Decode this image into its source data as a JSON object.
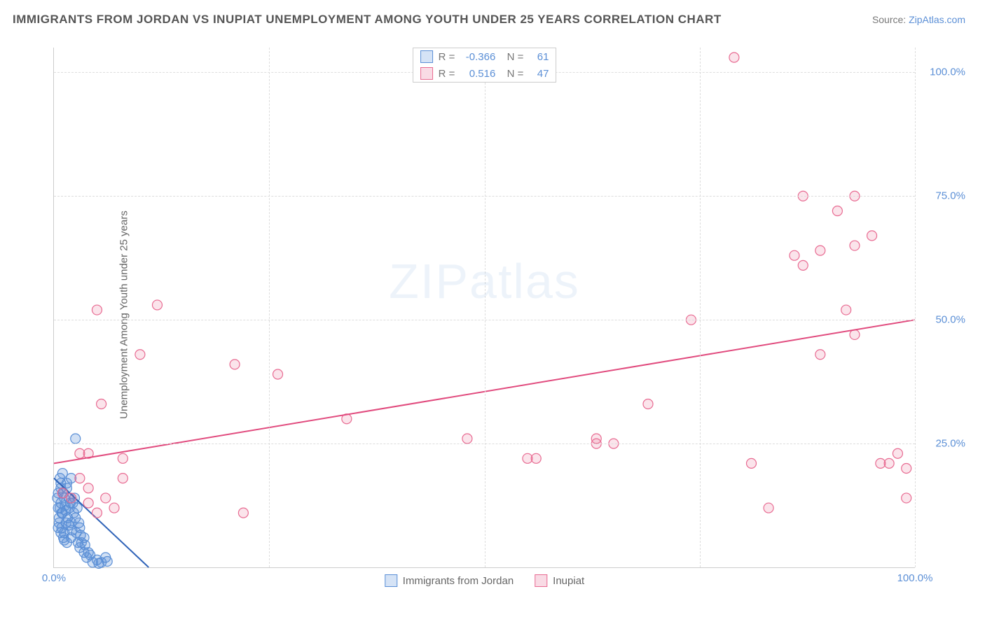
{
  "title": "IMMIGRANTS FROM JORDAN VS INUPIAT UNEMPLOYMENT AMONG YOUTH UNDER 25 YEARS CORRELATION CHART",
  "source_label": "Source:",
  "source_link": "ZipAtlas.com",
  "y_axis_label": "Unemployment Among Youth under 25 years",
  "watermark": {
    "t1": "ZIP",
    "t2": "atlas"
  },
  "chart": {
    "type": "scatter",
    "xlim": [
      0,
      100
    ],
    "ylim": [
      0,
      105
    ],
    "y_ticks": [
      {
        "v": 25,
        "label": "25.0%"
      },
      {
        "v": 50,
        "label": "50.0%"
      },
      {
        "v": 75,
        "label": "75.0%"
      },
      {
        "v": 100,
        "label": "100.0%"
      }
    ],
    "x_ticks": [
      {
        "v": 0,
        "label": "0.0%"
      },
      {
        "v": 100,
        "label": "100.0%"
      }
    ],
    "x_vgrid": [
      25,
      50,
      75,
      100
    ],
    "background_color": "#ffffff",
    "grid_color": "#dddddd",
    "axis_color": "#cccccc",
    "tick_label_color": "#5b8fd6",
    "marker_radius": 7,
    "marker_stroke_width": 1.2,
    "series": [
      {
        "name": "Immigrants from Jordan",
        "fill_color": "rgba(91,143,214,0.28)",
        "stroke_color": "#5b8fd6",
        "trend_color": "#2f63b8",
        "legend_square_bg": "#d5e3f6",
        "legend_square_border": "#5b8fd6",
        "R": "-0.366",
        "N": "61",
        "trend": {
          "x1": 0,
          "y1": 18,
          "x2": 11,
          "y2": 0
        },
        "points": [
          [
            2.5,
            26
          ],
          [
            0.8,
            17
          ],
          [
            1,
            19
          ],
          [
            0.5,
            15
          ],
          [
            0.8,
            13
          ],
          [
            1.2,
            14
          ],
          [
            1.5,
            16
          ],
          [
            0.7,
            12
          ],
          [
            2,
            18
          ],
          [
            1,
            11
          ],
          [
            2.2,
            13
          ],
          [
            0.6,
            10
          ],
          [
            1.8,
            12
          ],
          [
            1.4,
            9
          ],
          [
            0.9,
            8
          ],
          [
            2.5,
            10
          ],
          [
            2,
            9
          ],
          [
            1.2,
            7
          ],
          [
            3,
            8
          ],
          [
            2,
            6
          ],
          [
            1.5,
            5
          ],
          [
            3.5,
            6
          ],
          [
            2.8,
            5
          ],
          [
            3,
            4
          ],
          [
            4,
            3
          ],
          [
            3.5,
            3
          ],
          [
            0.8,
            16
          ],
          [
            1.8,
            14
          ],
          [
            2.3,
            11
          ],
          [
            1.1,
            6
          ],
          [
            0.5,
            12
          ],
          [
            1.6,
            10
          ],
          [
            4.5,
            1
          ],
          [
            5,
            1.5
          ],
          [
            5.5,
            1
          ],
          [
            6,
            2
          ],
          [
            3.8,
            2
          ],
          [
            0.4,
            14
          ],
          [
            0.6,
            9
          ],
          [
            2.1,
            7.5
          ],
          [
            1.3,
            12.5
          ],
          [
            1.7,
            8.5
          ],
          [
            0.9,
            11
          ],
          [
            2.6,
            7
          ],
          [
            3.2,
            5
          ],
          [
            1.9,
            13
          ],
          [
            1.1,
            15
          ],
          [
            0.7,
            18
          ],
          [
            2.4,
            14
          ],
          [
            1.5,
            17
          ],
          [
            0.5,
            8
          ],
          [
            3.1,
            6.5
          ],
          [
            4.2,
            2.5
          ],
          [
            3.6,
            4.5
          ],
          [
            2.9,
            9
          ],
          [
            1.4,
            11.5
          ],
          [
            0.8,
            7
          ],
          [
            2.7,
            12
          ],
          [
            1.2,
            5.5
          ],
          [
            5.2,
            0.8
          ],
          [
            6.2,
            1.2
          ]
        ]
      },
      {
        "name": "Inupiat",
        "fill_color": "rgba(232,107,146,0.18)",
        "stroke_color": "#e86b92",
        "trend_color": "#e14b7e",
        "legend_square_bg": "#f9dbe5",
        "legend_square_border": "#e86b92",
        "R": "0.516",
        "N": "47",
        "trend": {
          "x1": 0,
          "y1": 21,
          "x2": 100,
          "y2": 50
        },
        "points": [
          [
            79,
            103
          ],
          [
            5,
            52
          ],
          [
            12,
            53
          ],
          [
            10,
            43
          ],
          [
            21,
            41
          ],
          [
            26,
            39
          ],
          [
            5.5,
            33
          ],
          [
            3,
            23
          ],
          [
            4,
            23
          ],
          [
            8,
            18
          ],
          [
            8,
            22
          ],
          [
            6,
            14
          ],
          [
            7,
            12
          ],
          [
            22,
            11
          ],
          [
            34,
            30
          ],
          [
            48,
            26
          ],
          [
            55,
            22
          ],
          [
            56,
            22
          ],
          [
            63,
            26
          ],
          [
            63,
            25
          ],
          [
            65,
            25
          ],
          [
            69,
            33
          ],
          [
            74,
            50
          ],
          [
            87,
            75
          ],
          [
            93,
            75
          ],
          [
            81,
            21
          ],
          [
            83,
            12
          ],
          [
            86,
            63
          ],
          [
            87,
            61
          ],
          [
            89,
            64
          ],
          [
            89,
            43
          ],
          [
            91,
            72
          ],
          [
            92,
            52
          ],
          [
            93,
            65
          ],
          [
            93,
            47
          ],
          [
            95,
            67
          ],
          [
            96,
            21
          ],
          [
            97,
            21
          ],
          [
            98,
            23
          ],
          [
            99,
            14
          ],
          [
            99,
            20
          ],
          [
            1,
            15
          ],
          [
            2,
            14
          ],
          [
            3,
            18
          ],
          [
            4,
            16
          ],
          [
            4,
            13
          ],
          [
            5,
            11
          ]
        ]
      }
    ]
  },
  "legend_bottom": [
    {
      "label": "Immigrants from Jordan",
      "bg": "#d5e3f6",
      "border": "#5b8fd6"
    },
    {
      "label": "Inupiat",
      "bg": "#f9dbe5",
      "border": "#e86b92"
    }
  ]
}
